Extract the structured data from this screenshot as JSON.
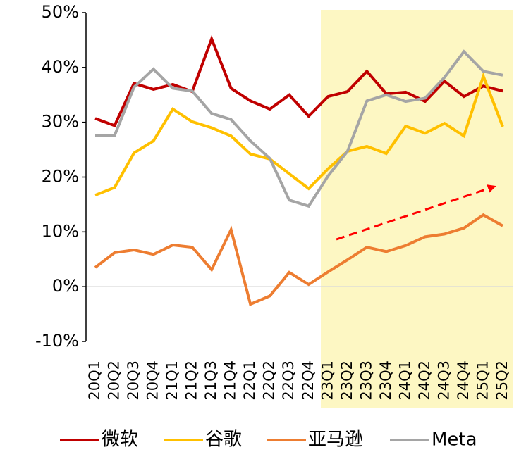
{
  "chart_data": {
    "type": "line",
    "categories": [
      "20Q1",
      "20Q2",
      "20Q3",
      "20Q4",
      "21Q1",
      "21Q2",
      "21Q3",
      "21Q4",
      "22Q1",
      "22Q2",
      "22Q3",
      "22Q4",
      "23Q1",
      "23Q2",
      "23Q3",
      "23Q4",
      "24Q1",
      "24Q2",
      "24Q3",
      "24Q4",
      "25Q1",
      "25Q2"
    ],
    "series": [
      {
        "name": "微软",
        "color": "#c00000",
        "values": [
          30.7,
          29.4,
          37.1,
          36.0,
          36.9,
          35.6,
          45.2,
          36.2,
          33.9,
          32.4,
          35.0,
          31.1,
          34.7,
          35.6,
          39.3,
          35.2,
          35.5,
          33.8,
          37.5,
          34.7,
          36.6,
          35.7
        ]
      },
      {
        "name": "谷歌",
        "color": "#ffc000",
        "values": [
          16.7,
          18.1,
          24.4,
          26.6,
          32.4,
          30.1,
          29.0,
          27.5,
          24.2,
          23.3,
          20.6,
          17.9,
          21.5,
          24.7,
          25.6,
          24.3,
          29.3,
          28.0,
          29.8,
          27.5,
          38.4,
          29.2
        ]
      },
      {
        "name": "亚马逊",
        "color": "#ed7d31",
        "values": [
          3.5,
          6.2,
          6.7,
          5.9,
          7.6,
          7.2,
          3.1,
          10.4,
          -3.2,
          -1.7,
          2.6,
          0.4,
          2.7,
          4.9,
          7.2,
          6.4,
          7.5,
          9.1,
          9.6,
          10.7,
          13.1,
          11.1
        ]
      },
      {
        "name": "Meta",
        "color": "#a5a5a5",
        "values": [
          27.6,
          27.6,
          36.4,
          39.7,
          36.2,
          35.7,
          31.6,
          30.5,
          26.6,
          23.4,
          15.8,
          14.7,
          20.2,
          24.7,
          33.9,
          35.0,
          33.8,
          34.4,
          38.2,
          42.9,
          39.3,
          38.6
        ]
      }
    ],
    "ylim": [
      -10,
      50
    ],
    "yticks": [
      {
        "value": -10,
        "label": "-10%"
      },
      {
        "value": 0,
        "label": "0%"
      },
      {
        "value": 10,
        "label": "10%"
      },
      {
        "value": 20,
        "label": "20%"
      },
      {
        "value": 30,
        "label": "30%"
      },
      {
        "value": 40,
        "label": "40%"
      },
      {
        "value": 50,
        "label": "50%"
      }
    ],
    "grid": false,
    "legend": "bottom"
  }
}
